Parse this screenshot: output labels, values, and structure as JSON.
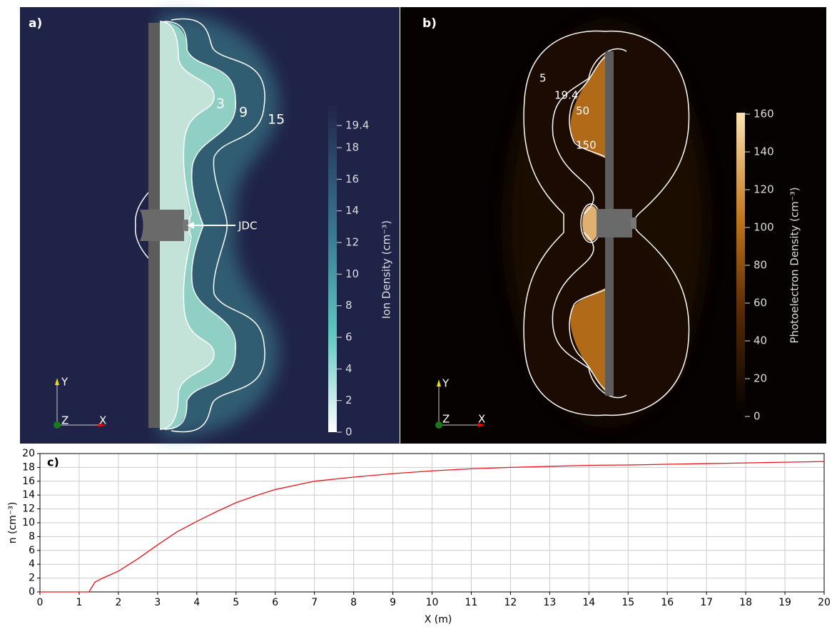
{
  "chart_data": [
    {
      "type": "heatmap",
      "panel_label": "a)",
      "colorbar_label": "Ion Density (cm⁻³)",
      "clim": [
        0,
        19.4
      ],
      "cticks": [
        0,
        2,
        4,
        6,
        8,
        10,
        12,
        14,
        16,
        18,
        19.4
      ],
      "contour_labels": [
        "3",
        "9",
        "15"
      ],
      "annotation": "JDC",
      "axis_labels": [
        "Y",
        "Z",
        "X"
      ]
    },
    {
      "type": "heatmap",
      "panel_label": "b)",
      "colorbar_label": "Photoelectron Density (cm⁻³)",
      "clim": [
        0,
        160
      ],
      "cticks": [
        0,
        20,
        40,
        60,
        80,
        100,
        120,
        140,
        160
      ],
      "contour_labels": [
        "5",
        "19.4",
        "50",
        "150"
      ],
      "axis_labels": [
        "Y",
        "Z",
        "X"
      ]
    },
    {
      "type": "line",
      "panel_label": "c)",
      "xlabel": "X (m)",
      "ylabel": "n (cm⁻³)",
      "color": "#e8141c",
      "grid": true,
      "xlim": [
        0,
        20
      ],
      "xticks": [
        0,
        1,
        2,
        3,
        4,
        5,
        6,
        7,
        8,
        9,
        10,
        11,
        12,
        13,
        14,
        15,
        16,
        17,
        18,
        19,
        20
      ],
      "ylim": [
        0,
        20
      ],
      "yticks": [
        0,
        2,
        4,
        6,
        8,
        10,
        12,
        14,
        16,
        18,
        20
      ],
      "x": [
        0,
        1,
        1.25,
        1.4,
        1.6,
        2,
        2.5,
        3,
        3.5,
        4,
        4.5,
        5,
        5.5,
        6,
        7,
        8,
        9,
        10,
        11,
        12,
        13,
        14,
        15,
        16,
        17,
        18,
        19,
        20
      ],
      "values": [
        0,
        0,
        0,
        1.4,
        2.0,
        3.0,
        4.8,
        6.8,
        8.7,
        10.2,
        11.6,
        12.9,
        13.9,
        14.8,
        16.0,
        16.6,
        17.1,
        17.5,
        17.8,
        18.0,
        18.15,
        18.3,
        18.35,
        18.45,
        18.55,
        18.65,
        18.75,
        18.85
      ]
    }
  ]
}
